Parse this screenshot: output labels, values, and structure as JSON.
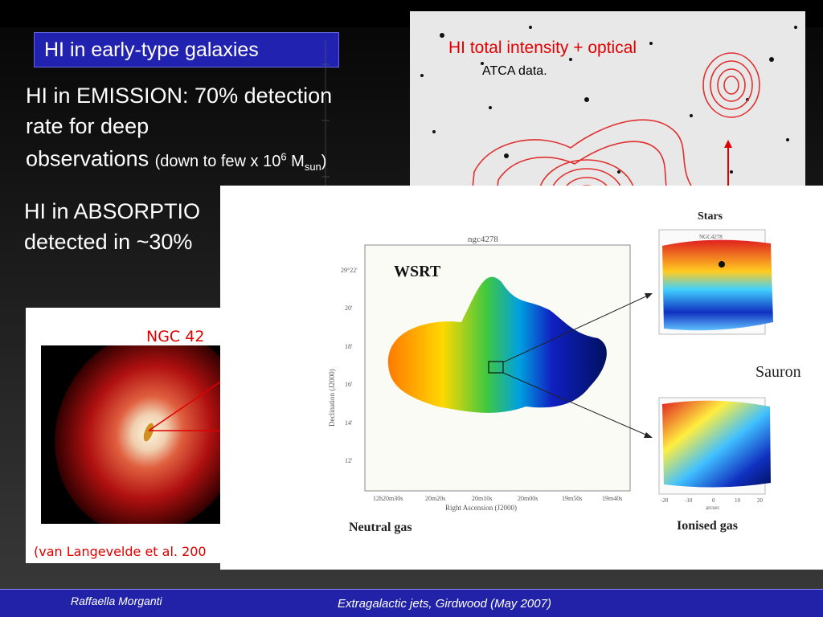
{
  "slide": {
    "title": "HI in early-type galaxies",
    "emission_line1": "HI in EMISSION: 70% detection",
    "emission_line2": "rate for deep",
    "emission_line3": "observations",
    "emission_note_pre": "(down to few x 10",
    "emission_note_exp": "6",
    "emission_note_m": " M",
    "emission_note_sub": "sun",
    "emission_note_post": ")",
    "absorption_line1": "HI in ABSORPTIO",
    "absorption_line2": "detected in ~30%"
  },
  "hi_panel": {
    "caption": "HI total intensity + optical",
    "subcaption": "ATCA data."
  },
  "ngc_panel": {
    "label": "NGC 42",
    "citation": "(van Langevelde et al. 200"
  },
  "wsrt_panel": {
    "map_title": "ngc4278",
    "instrument": "WSRT",
    "ylabel": "Declination (J2000)",
    "xlabel": "Right Ascension (J2000)",
    "y_ticks": [
      "29°22'",
      "20'",
      "18'",
      "16'",
      "14'",
      "12'"
    ],
    "x_ticks": [
      "12h20m30s",
      "20m20s",
      "20m10s",
      "20m00s",
      "19m50s",
      "19m40s"
    ],
    "caption": "Neutral gas",
    "stars_label": "Stars",
    "stars_sublabel": "NGC4278",
    "sauron_label": "Sauron",
    "ionised_label": "Ionised gas",
    "arcsec_ticks": [
      "-20",
      "-10",
      "0",
      "10",
      "20"
    ],
    "arcsec_label": "arcsec"
  },
  "footer": {
    "author": "Raffaella Morganti",
    "event": "Extragalactic jets, Girdwood (May 2007)"
  },
  "colors": {
    "title_bg": "#2222b0",
    "footer_bg": "#2222a8",
    "accent_red": "#e00000"
  }
}
